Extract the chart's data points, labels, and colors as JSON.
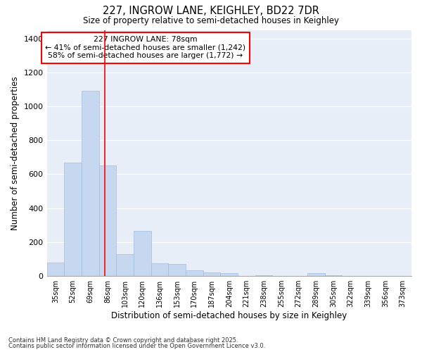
{
  "title1": "227, INGROW LANE, KEIGHLEY, BD22 7DR",
  "title2": "Size of property relative to semi-detached houses in Keighley",
  "xlabel": "Distribution of semi-detached houses by size in Keighley",
  "ylabel": "Number of semi-detached properties",
  "categories": [
    "35sqm",
    "52sqm",
    "69sqm",
    "86sqm",
    "103sqm",
    "120sqm",
    "136sqm",
    "153sqm",
    "170sqm",
    "187sqm",
    "204sqm",
    "221sqm",
    "238sqm",
    "255sqm",
    "272sqm",
    "289sqm",
    "305sqm",
    "322sqm",
    "339sqm",
    "356sqm",
    "373sqm"
  ],
  "values": [
    80,
    670,
    1090,
    650,
    130,
    265,
    75,
    70,
    35,
    20,
    15,
    0,
    5,
    0,
    0,
    15,
    5,
    0,
    0,
    0,
    0
  ],
  "bar_color": "#c5d8f0",
  "bar_edge_color": "#a0bedd",
  "bg_color": "#e8eef8",
  "fig_bg_color": "#ffffff",
  "grid_color": "#ffffff",
  "redline_x": 2.85,
  "annotation_title": "227 INGROW LANE: 78sqm",
  "annotation_line1": "← 41% of semi-detached houses are smaller (1,242)",
  "annotation_line2": "58% of semi-detached houses are larger (1,772) →",
  "footer1": "Contains HM Land Registry data © Crown copyright and database right 2025.",
  "footer2": "Contains public sector information licensed under the Open Government Licence v3.0.",
  "ylim": [
    0,
    1450
  ],
  "yticks": [
    0,
    200,
    400,
    600,
    800,
    1000,
    1200,
    1400
  ]
}
